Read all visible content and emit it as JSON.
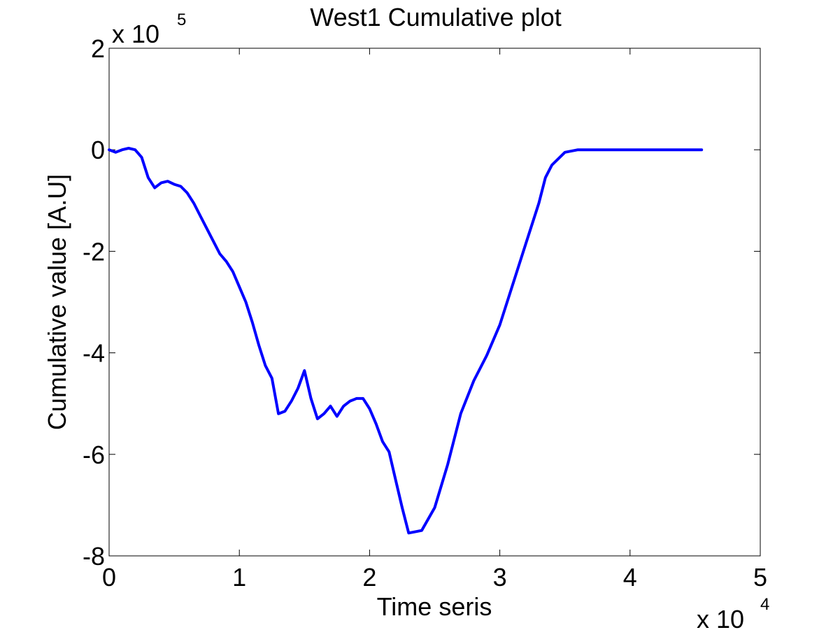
{
  "chart_data": {
    "type": "line",
    "title": "West1 Cumulative plot",
    "xlabel": "Time seris",
    "ylabel": "Cumulative value [A.U]",
    "x_multiplier_label": {
      "base": "x 10",
      "exp": "4"
    },
    "y_multiplier_label": {
      "base": "x 10",
      "exp": "5"
    },
    "xlim": [
      0,
      5
    ],
    "ylim": [
      -8,
      2
    ],
    "xticks": [
      0,
      1,
      2,
      3,
      4,
      5
    ],
    "xtick_labels": [
      "0",
      "1",
      "2",
      "3",
      "4",
      "5"
    ],
    "yticks": [
      -8,
      -6,
      -4,
      -2,
      0,
      2
    ],
    "ytick_labels": [
      "-8",
      "-6",
      "-4",
      "-2",
      "0",
      "2"
    ],
    "grid": false,
    "legend": false,
    "series": [
      {
        "color": "#0000ff",
        "x": [
          0,
          0.05,
          0.1,
          0.15,
          0.2,
          0.25,
          0.3,
          0.35,
          0.4,
          0.45,
          0.5,
          0.55,
          0.6,
          0.65,
          0.7,
          0.75,
          0.8,
          0.85,
          0.9,
          0.95,
          1.0,
          1.05,
          1.1,
          1.15,
          1.2,
          1.25,
          1.3,
          1.35,
          1.4,
          1.45,
          1.5,
          1.55,
          1.6,
          1.65,
          1.7,
          1.75,
          1.8,
          1.85,
          1.9,
          1.95,
          2.0,
          2.05,
          2.1,
          2.15,
          2.2,
          2.25,
          2.3,
          2.4,
          2.5,
          2.6,
          2.7,
          2.8,
          2.9,
          3.0,
          3.1,
          3.2,
          3.3,
          3.35,
          3.4,
          3.5,
          3.6,
          3.7,
          3.8,
          3.9,
          4.0,
          4.1,
          4.2,
          4.3,
          4.4,
          4.5,
          4.55
        ],
        "y": [
          0.0,
          -0.05,
          0.0,
          0.03,
          0.0,
          -0.15,
          -0.55,
          -0.75,
          -0.65,
          -0.62,
          -0.68,
          -0.72,
          -0.85,
          -1.05,
          -1.3,
          -1.55,
          -1.8,
          -2.05,
          -2.2,
          -2.4,
          -2.7,
          -3.0,
          -3.4,
          -3.85,
          -4.25,
          -4.5,
          -5.2,
          -5.15,
          -4.95,
          -4.7,
          -4.35,
          -4.9,
          -5.3,
          -5.2,
          -5.05,
          -5.25,
          -5.05,
          -4.95,
          -4.9,
          -4.9,
          -5.1,
          -5.4,
          -5.75,
          -5.95,
          -6.5,
          -7.05,
          -7.55,
          -7.5,
          -7.05,
          -6.2,
          -5.2,
          -4.55,
          -4.05,
          -3.45,
          -2.65,
          -1.85,
          -1.05,
          -0.55,
          -0.3,
          -0.05,
          0.0,
          0.0,
          0.0,
          0.0,
          0.0,
          0.0,
          0.0,
          0.0,
          0.0,
          0.0,
          0.0
        ]
      }
    ]
  }
}
